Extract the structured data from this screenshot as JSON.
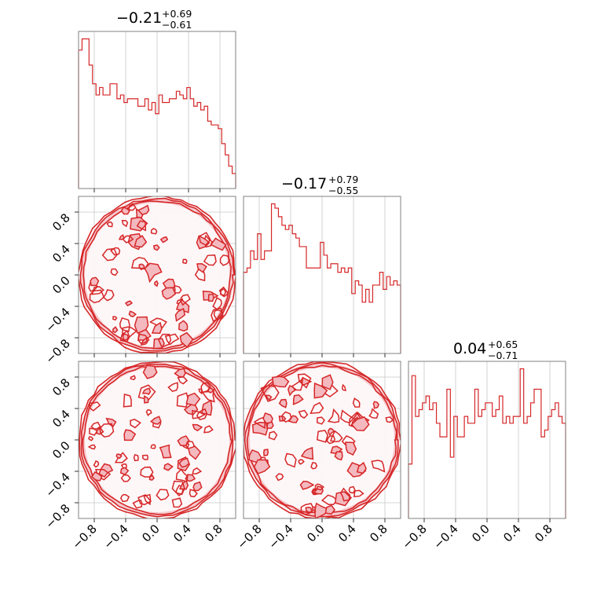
{
  "chart_data": {
    "type": "corner",
    "range": [
      -1,
      1
    ],
    "ticks": [
      -0.8,
      -0.4,
      0.0,
      0.4,
      0.8
    ],
    "tick_labels": [
      "−0.8",
      "−0.4",
      "0.0",
      "0.4",
      "0.8"
    ],
    "colors": {
      "line": "#d62728",
      "fill": "#f3b9bf",
      "grid": "#c8c8c8",
      "frame": "#808080"
    },
    "marginals": [
      {
        "title_value": "−0.21",
        "title_plus": "+0.69",
        "title_minus": "−0.61",
        "counts": [
          37,
          40,
          40,
          33,
          28,
          25,
          27,
          25,
          25,
          28,
          28,
          24,
          25,
          23,
          24,
          24,
          24,
          22,
          22,
          24,
          21,
          23,
          20,
          25,
          23,
          23,
          24,
          24,
          26,
          25,
          24,
          27,
          24,
          22,
          23,
          21,
          22,
          18,
          17,
          17,
          16,
          12,
          9,
          6,
          4
        ]
      },
      {
        "title_value": "−0.17",
        "title_plus": "+0.79",
        "title_minus": "−0.55",
        "counts": [
          19,
          20,
          24,
          22,
          28,
          22,
          24,
          24,
          35,
          34,
          32,
          30,
          29,
          30,
          28,
          27,
          25,
          25,
          20,
          20,
          20,
          20,
          26,
          23,
          20,
          21,
          21,
          19,
          20,
          19,
          20,
          14,
          17,
          16,
          12,
          15,
          12,
          16,
          16,
          19,
          15,
          18,
          16,
          17,
          16
        ]
      },
      {
        "title_value": "0.04",
        "title_plus": "+0.65",
        "title_minus": "−0.71",
        "counts": [
          8,
          21,
          15,
          16,
          17,
          18,
          16,
          17,
          14,
          12,
          12,
          19,
          9,
          15,
          12,
          12,
          15,
          14,
          14,
          19,
          15,
          16,
          17,
          17,
          15,
          16,
          18,
          14,
          15,
          14,
          15,
          15,
          22,
          14,
          15,
          17,
          19,
          19,
          12,
          13,
          15,
          16,
          17,
          15,
          14
        ]
      }
    ],
    "joint_2d": [
      {
        "pair": [
          "x0",
          "x1"
        ],
        "support": "disk radius 1"
      },
      {
        "pair": [
          "x0",
          "x2"
        ],
        "support": "disk radius 1"
      },
      {
        "pair": [
          "x1",
          "x2"
        ],
        "support": "disk radius 1"
      }
    ],
    "grid": true
  }
}
